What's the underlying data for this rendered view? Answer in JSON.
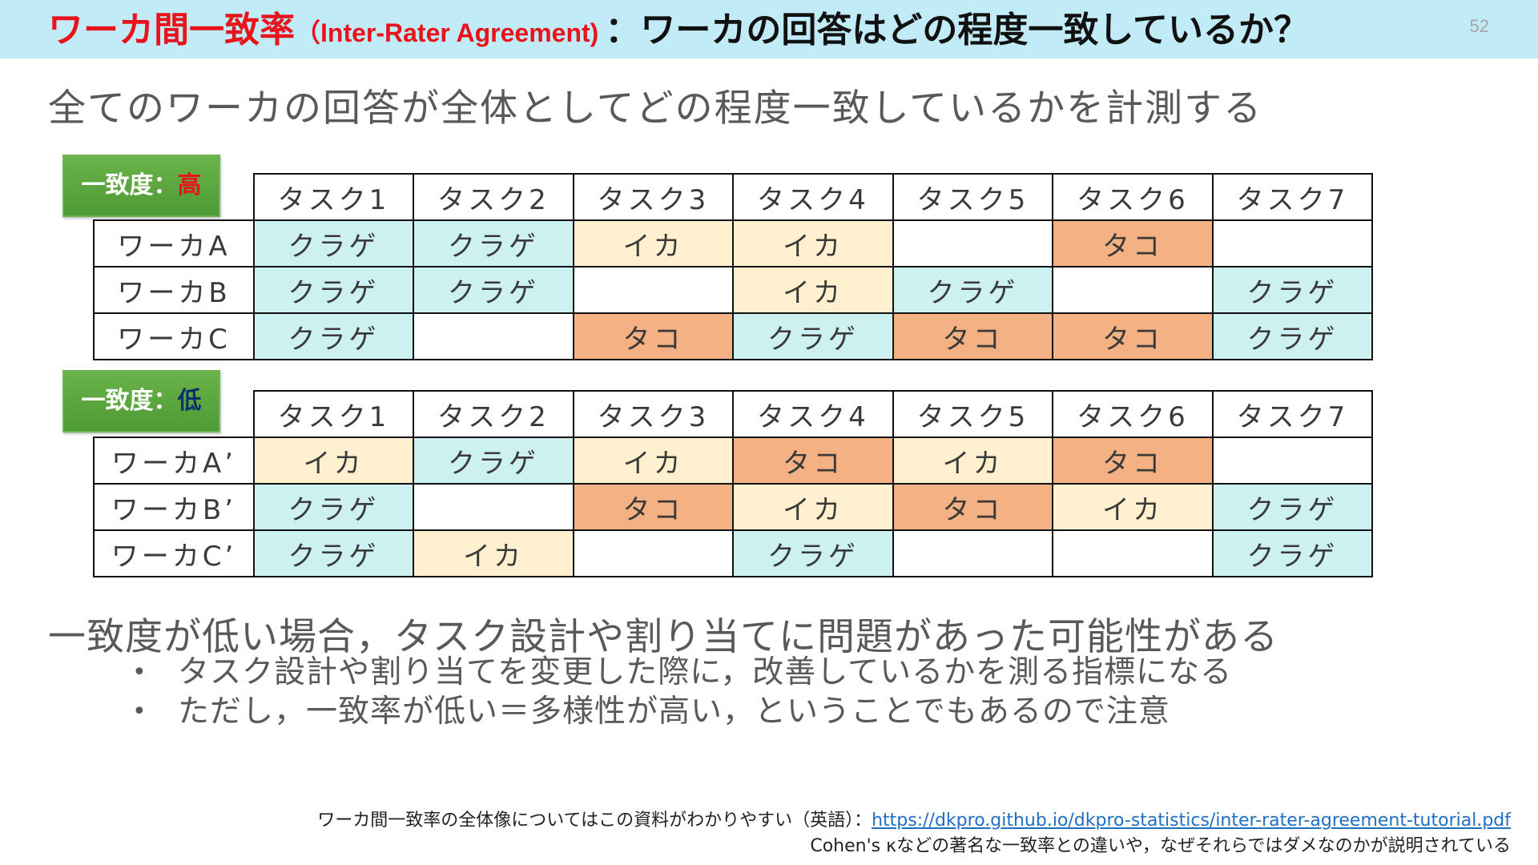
{
  "header": {
    "title_main": "ワーカ間一致率",
    "title_en": "（Inter-Rater Agreement)",
    "title_rest": "：ワーカの回答はどの程度一致しているか？",
    "page_number": "52",
    "background_color": "#c1ebf7",
    "accent_color": "#e8141b"
  },
  "subtitle": "全てのワーカの回答が全体としてどの程度一致しているかを計測する",
  "tables": [
    {
      "tag_prefix": "一致度：",
      "tag_level": "高",
      "tasks": [
        "タスク1",
        "タスク2",
        "タスク3",
        "タスク4",
        "タスク5",
        "タスク6",
        "タスク7"
      ],
      "rows": [
        {
          "worker": "ワーカA",
          "cells": [
            "クラゲ",
            "クラゲ",
            "イカ",
            "イカ",
            "",
            "タコ",
            ""
          ]
        },
        {
          "worker": "ワーカB",
          "cells": [
            "クラゲ",
            "クラゲ",
            "",
            "イカ",
            "クラゲ",
            "",
            "クラゲ"
          ]
        },
        {
          "worker": "ワーカC",
          "cells": [
            "クラゲ",
            "",
            "タコ",
            "クラゲ",
            "タコ",
            "タコ",
            "クラゲ"
          ]
        }
      ]
    },
    {
      "tag_prefix": "一致度：",
      "tag_level": "低",
      "tasks": [
        "タスク1",
        "タスク2",
        "タスク3",
        "タスク4",
        "タスク5",
        "タスク6",
        "タスク7"
      ],
      "rows": [
        {
          "worker": "ワーカA’",
          "cells": [
            "イカ",
            "クラゲ",
            "イカ",
            "タコ",
            "イカ",
            "タコ",
            ""
          ]
        },
        {
          "worker": "ワーカB’",
          "cells": [
            "クラゲ",
            "",
            "タコ",
            "イカ",
            "タコ",
            "イカ",
            "クラゲ"
          ]
        },
        {
          "worker": "ワーカC’",
          "cells": [
            "クラゲ",
            "イカ",
            "",
            "クラゲ",
            "",
            "",
            "クラゲ"
          ]
        }
      ]
    }
  ],
  "answer_colors": {
    "クラゲ": "#cdf1f1",
    "イカ": "#fff1cf",
    "タコ": "#f4b184"
  },
  "point": "一致度が低い場合，タスク設計や割り当てに問題があった可能性がある",
  "bullets": [
    "タスク設計や割り当てを変更した際に，改善しているかを測る指標になる",
    "ただし，一致率が低い＝多様性が高い，ということでもあるので注意"
  ],
  "bullet_glyph": "•",
  "footnote": {
    "line1_text": "ワーカ間一致率の全体像についてはこの資料がわかりやすい（英語）：",
    "link_url": "https://dkpro.github.io/dkpro-statistics/inter-rater-agreement-tutorial.pdf",
    "line2_text": "Cohen's κなどの著名な一致率との違いや，なぜそれらではダメなのかが説明されている"
  }
}
